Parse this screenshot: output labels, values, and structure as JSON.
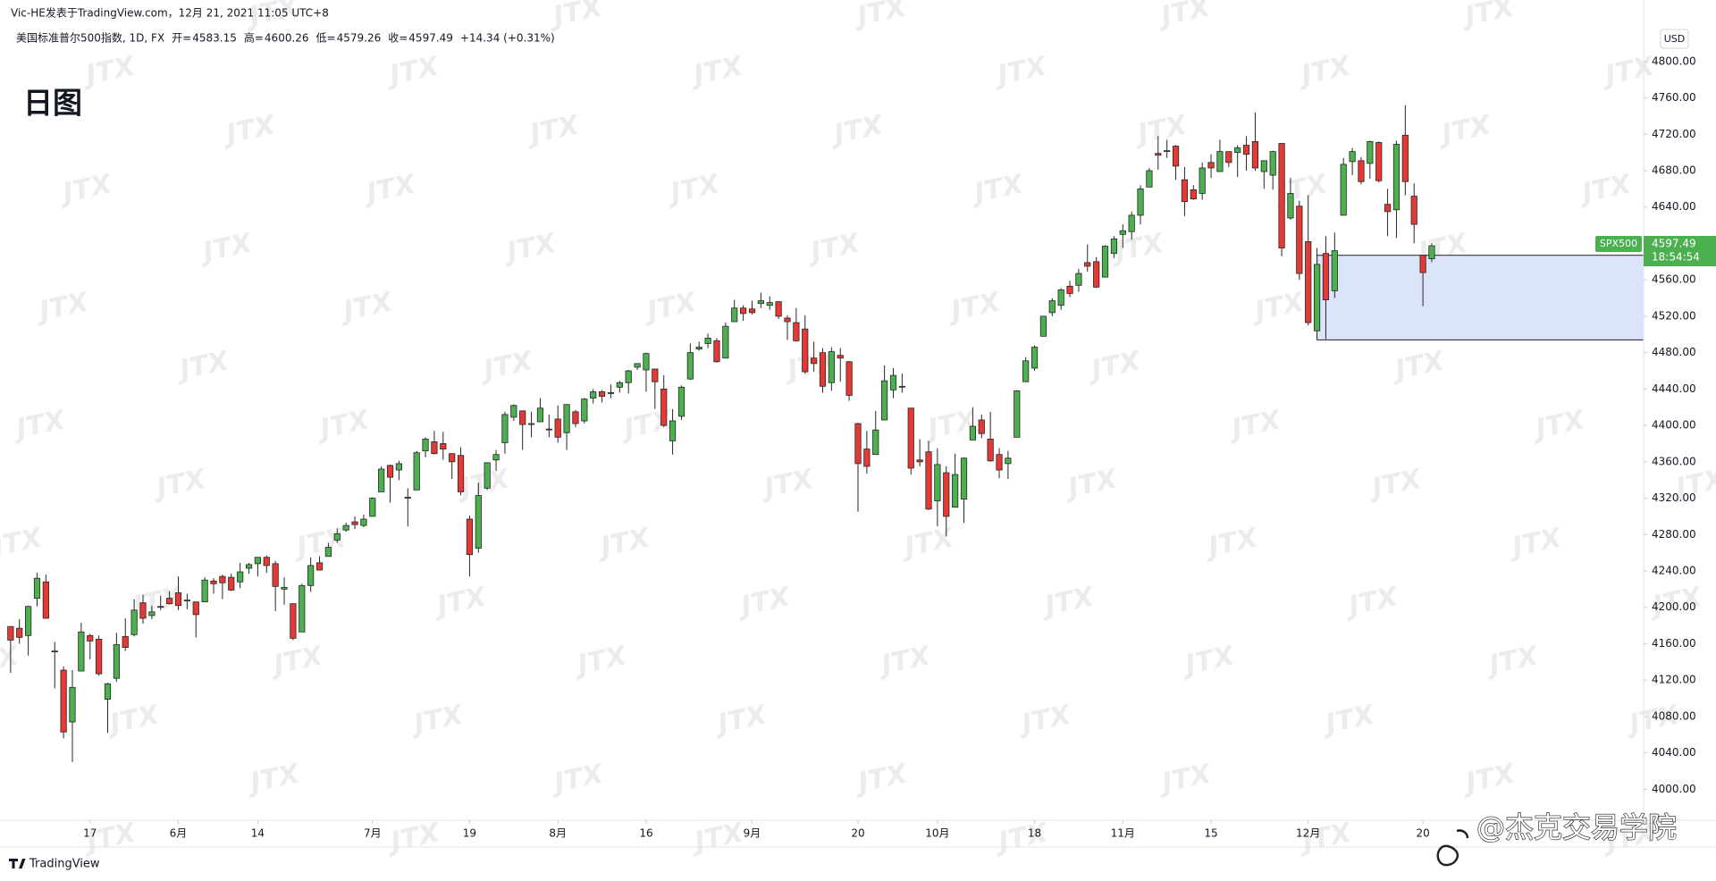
{
  "header": "Vic-HE发表于TradingView.com，12月 21, 2021 11:05 UTC+8",
  "logo": "TradingView",
  "watermark": "JTX",
  "signature": "@杰克交易学院",
  "chart_data": {
    "type": "candlestick",
    "title": "日图",
    "legend": {
      "symbol": "美国标准普尔500指数, 1D, FX",
      "open_label": "开=",
      "high_label": "高=",
      "low_label": "低=",
      "close_label": "收=",
      "change": "+14.34 (+0.31%)"
    },
    "currency": "USD",
    "up_color": "#4caf50",
    "down_color": "#e53935",
    "border_color": "#262626",
    "wick_color": "#262626",
    "grid": false,
    "open": [
      4179,
      4177,
      4169,
      4210,
      4228,
      4151,
      4131,
      4074,
      4130,
      4169,
      4165,
      4099,
      4122,
      4168,
      4170,
      4205,
      4191,
      4201,
      4210,
      4216,
      4207,
      4206,
      4206,
      4229,
      4234,
      4233,
      4228,
      4243,
      4248,
      4255,
      4248,
      4220,
      4204,
      4173,
      4224,
      4249,
      4256,
      4274,
      4285,
      4294,
      4290,
      4300,
      4327,
      4356,
      4351,
      4321,
      4329,
      4372,
      4382,
      4380,
      4369,
      4367,
      4297,
      4265,
      4331,
      4362,
      4381,
      4409,
      4416,
      4402,
      4404,
      4396,
      4407,
      4392,
      4415,
      4405,
      4430,
      4437,
      4436,
      4442,
      4447,
      4464,
      4461,
      4462,
      4440,
      4383,
      4410,
      4451,
      4484,
      4490,
      4493,
      4474,
      4514,
      4529,
      4528,
      4534,
      4532,
      4536,
      4518,
      4513,
      4506,
      4474,
      4480,
      4447,
      4477,
      4470,
      4402,
      4374,
      4368,
      4406,
      4439,
      4443,
      4419,
      4362,
      4371,
      4317,
      4348,
      4310,
      4319,
      4384,
      4406,
      4385,
      4368,
      4358,
      4387,
      4448,
      4463,
      4498,
      4524,
      4532,
      4553,
      4554,
      4579,
      4580,
      4563,
      4589,
      4610,
      4613,
      4631,
      4662,
      4699,
      4701,
      4707,
      4670,
      4659,
      4655,
      4689,
      4679,
      4701,
      4700,
      4708,
      4712,
      4679,
      4675,
      4710,
      4628,
      4641,
      4602,
      4504,
      4589,
      4548,
      4631,
      4690,
      4691,
      4688,
      4711,
      4643,
      4637,
      4719,
      4652,
      4587,
      4583.15
    ],
    "high": [
      4179,
      4187,
      4202,
      4238,
      4236,
      4162,
      4135,
      4131,
      4183,
      4171,
      4169,
      4117,
      4172,
      4188,
      4209,
      4214,
      4202,
      4213,
      4218,
      4234,
      4215,
      4206,
      4233,
      4232,
      4236,
      4237,
      4249,
      4249,
      4255,
      4257,
      4251,
      4233,
      4204,
      4226,
      4255,
      4256,
      4271,
      4287,
      4293,
      4300,
      4302,
      4321,
      4355,
      4357,
      4361,
      4331,
      4372,
      4387,
      4394,
      4393,
      4369,
      4376,
      4301,
      4337,
      4359,
      4373,
      4415,
      4423,
      4416,
      4415,
      4430,
      4412,
      4422,
      4423,
      4417,
      4430,
      4440,
      4439,
      4445,
      4449,
      4461,
      4468,
      4480,
      4462,
      4455,
      4418,
      4444,
      4490,
      4492,
      4501,
      4496,
      4513,
      4538,
      4532,
      4537,
      4546,
      4542,
      4536,
      4521,
      4529,
      4521,
      4492,
      4485,
      4486,
      4485,
      4471,
      4403,
      4394,
      4416,
      4466,
      4463,
      4457,
      4419,
      4385,
      4383,
      4375,
      4355,
      4369,
      4365,
      4420,
      4412,
      4415,
      4375,
      4372,
      4439,
      4475,
      4488,
      4520,
      4540,
      4551,
      4559,
      4572,
      4599,
      4585,
      4598,
      4608,
      4621,
      4635,
      4664,
      4683,
      4718,
      4714,
      4708,
      4684,
      4664,
      4689,
      4698,
      4714,
      4701,
      4708,
      4718,
      4744,
      4691,
      4702,
      4710,
      4672,
      4647,
      4653,
      4595,
      4608,
      4612,
      4694,
      4705,
      4695,
      4713,
      4712,
      4660,
      4713,
      4752,
      4666,
      4587,
      4600.26
    ],
    "low": [
      4128,
      4160,
      4147,
      4201,
      4188,
      4111,
      4056,
      4030,
      4130,
      4143,
      4125,
      4062,
      4118,
      4152,
      4168,
      4182,
      4187,
      4197,
      4203,
      4197,
      4198,
      4167,
      4206,
      4215,
      4209,
      4218,
      4221,
      4237,
      4234,
      4238,
      4196,
      4203,
      4164,
      4173,
      4217,
      4241,
      4256,
      4271,
      4283,
      4286,
      4288,
      4300,
      4327,
      4315,
      4340,
      4289,
      4329,
      4365,
      4368,
      4362,
      4341,
      4323,
      4234,
      4260,
      4329,
      4350,
      4369,
      4405,
      4373,
      4387,
      4404,
      4387,
      4381,
      4373,
      4398,
      4402,
      4424,
      4425,
      4430,
      4436,
      4435,
      4461,
      4437,
      4418,
      4398,
      4368,
      4406,
      4450,
      4482,
      4485,
      4469,
      4474,
      4514,
      4515,
      4522,
      4529,
      4527,
      4517,
      4494,
      4492,
      4457,
      4459,
      4436,
      4438,
      4448,
      4427,
      4305,
      4347,
      4368,
      4406,
      4430,
      4436,
      4346,
      4355,
      4307,
      4289,
      4278,
      4310,
      4293,
      4384,
      4386,
      4360,
      4342,
      4341,
      4387,
      4448,
      4460,
      4498,
      4520,
      4527,
      4541,
      4547,
      4569,
      4551,
      4563,
      4584,
      4595,
      4604,
      4621,
      4662,
      4681,
      4694,
      4670,
      4630,
      4648,
      4648,
      4672,
      4679,
      4684,
      4673,
      4680,
      4680,
      4660,
      4659,
      4586,
      4626,
      4560,
      4510,
      4504,
      4495,
      4540,
      4631,
      4675,
      4665,
      4671,
      4667,
      4608,
      4606,
      4653,
      4600,
      4531,
      4579.26
    ],
    "close": [
      4164,
      4167,
      4201,
      4232,
      4188,
      4152,
      4063,
      4112,
      4173,
      4163,
      4127,
      4116,
      4159,
      4156,
      4197,
      4188,
      4195,
      4200,
      4204,
      4202,
      4208,
      4192,
      4230,
      4226,
      4227,
      4219,
      4239,
      4247,
      4255,
      4246,
      4223,
      4222,
      4166,
      4224,
      4246,
      4241,
      4266,
      4281,
      4290,
      4291,
      4297,
      4320,
      4352,
      4343,
      4358,
      4320,
      4370,
      4385,
      4369,
      4374,
      4360,
      4327,
      4258,
      4323,
      4359,
      4368,
      4412,
      4422,
      4401,
      4401,
      4419,
      4395,
      4387,
      4423,
      4402,
      4429,
      4437,
      4432,
      4436,
      4447,
      4460,
      4468,
      4479,
      4448,
      4400,
      4405,
      4442,
      4480,
      4486,
      4496,
      4470,
      4509,
      4529,
      4523,
      4524,
      4537,
      4535,
      4520,
      4514,
      4493,
      4459,
      4468,
      4443,
      4481,
      4474,
      4433,
      4358,
      4355,
      4395,
      4449,
      4455,
      4443,
      4353,
      4360,
      4308,
      4357,
      4300,
      4346,
      4364,
      4399,
      4391,
      4361,
      4351,
      4364,
      4438,
      4471,
      4486,
      4520,
      4537,
      4549,
      4545,
      4567,
      4575,
      4552,
      4597,
      4605,
      4614,
      4631,
      4660,
      4680,
      4697,
      4702,
      4685,
      4646,
      4649,
      4683,
      4683,
      4701,
      4689,
      4705,
      4698,
      4683,
      4691,
      4701,
      4595,
      4655,
      4567,
      4513,
      4577,
      4538,
      4592,
      4687,
      4701,
      4668,
      4712,
      4669,
      4635,
      4709,
      4668,
      4621,
      4568,
      4597.49
    ],
    "xlim": [
      -1.2,
      185
    ],
    "xticks": [
      {
        "value": 9,
        "label": "17"
      },
      {
        "value": 19,
        "label": "6月"
      },
      {
        "value": 28,
        "label": "14"
      },
      {
        "value": 41,
        "label": "7月"
      },
      {
        "value": 52,
        "label": "19"
      },
      {
        "value": 62,
        "label": "8月"
      },
      {
        "value": 72,
        "label": "16"
      },
      {
        "value": 84,
        "label": "9月"
      },
      {
        "value": 96,
        "label": "20"
      },
      {
        "value": 105,
        "label": "10月"
      },
      {
        "value": 116,
        "label": "18"
      },
      {
        "value": 126,
        "label": "11月"
      },
      {
        "value": 136,
        "label": "15"
      },
      {
        "value": 147,
        "label": "12月"
      },
      {
        "value": 160,
        "label": "20"
      }
    ],
    "ylim": [
      3966,
      4846
    ],
    "yticks": [
      {
        "value": 4000,
        "label": "4000.00"
      },
      {
        "value": 4040,
        "label": "4040.00"
      },
      {
        "value": 4080,
        "label": "4080.00"
      },
      {
        "value": 4120,
        "label": "4120.00"
      },
      {
        "value": 4160,
        "label": "4160.00"
      },
      {
        "value": 4200,
        "label": "4200.00"
      },
      {
        "value": 4240,
        "label": "4240.00"
      },
      {
        "value": 4280,
        "label": "4280.00"
      },
      {
        "value": 4320,
        "label": "4320.00"
      },
      {
        "value": 4360,
        "label": "4360.00"
      },
      {
        "value": 4400,
        "label": "4400.00"
      },
      {
        "value": 4440,
        "label": "4440.00"
      },
      {
        "value": 4480,
        "label": "4480.00"
      },
      {
        "value": 4520,
        "label": "4520.00"
      },
      {
        "value": 4560,
        "label": "4560.00"
      },
      {
        "value": 4600,
        "label": "4600.00"
      },
      {
        "value": 4640,
        "label": "4640.00"
      },
      {
        "value": 4680,
        "label": "4680.00"
      },
      {
        "value": 4720,
        "label": "4720.00"
      },
      {
        "value": 4760,
        "label": "4760.00"
      },
      {
        "value": 4800,
        "label": "4800.00"
      }
    ],
    "zone": {
      "from_index": 148,
      "top": 4587,
      "bottom": 4494,
      "color": "#dce4fb"
    },
    "last_price": {
      "label": "SPX500",
      "value": 4597.49,
      "countdown": "18:54:54",
      "color": "#4caf50"
    }
  }
}
